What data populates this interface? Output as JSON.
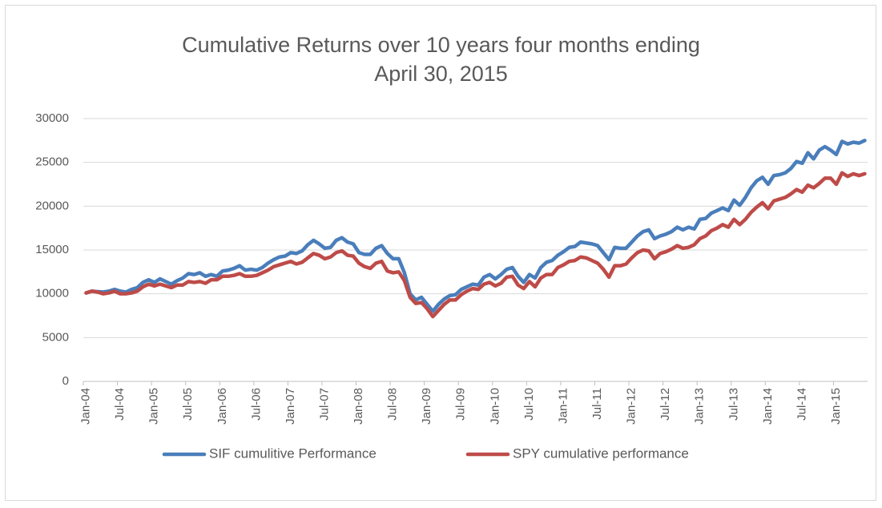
{
  "chart_data": {
    "type": "line",
    "title": "Cumulative Returns over 10 years four months ending April 30, 2015",
    "categories": [
      "Jan-04",
      null,
      null,
      null,
      null,
      null,
      "Jul-04",
      null,
      null,
      null,
      null,
      null,
      "Jan-05",
      null,
      null,
      null,
      null,
      null,
      "Jul-05",
      null,
      null,
      null,
      null,
      null,
      "Jan-06",
      null,
      null,
      null,
      null,
      null,
      "Jul-06",
      null,
      null,
      null,
      null,
      null,
      "Jan-07",
      null,
      null,
      null,
      null,
      null,
      "Jul-07",
      null,
      null,
      null,
      null,
      null,
      "Jan-08",
      null,
      null,
      null,
      null,
      null,
      "Jul-08",
      null,
      null,
      null,
      null,
      null,
      "Jan-09",
      null,
      null,
      null,
      null,
      null,
      "Jul-09",
      null,
      null,
      null,
      null,
      null,
      "Jan-10",
      null,
      null,
      null,
      null,
      null,
      "Jul-10",
      null,
      null,
      null,
      null,
      null,
      "Jan-11",
      null,
      null,
      null,
      null,
      null,
      "Jul-11",
      null,
      null,
      null,
      null,
      null,
      "Jan-12",
      null,
      null,
      null,
      null,
      null,
      "Jul-12",
      null,
      null,
      null,
      null,
      null,
      "Jan-13",
      null,
      null,
      null,
      null,
      null,
      "Jul-13",
      null,
      null,
      null,
      null,
      null,
      "Jan-14",
      null,
      null,
      null,
      null,
      null,
      "Jul-14",
      null,
      null,
      null,
      null,
      null,
      "Jan-15",
      null,
      null,
      null,
      null,
      null
    ],
    "series": [
      {
        "name": "SIF cumulitive Performance",
        "color": "#4a7ebb",
        "values": [
          10100,
          10300,
          10250,
          10200,
          10300,
          10500,
          10300,
          10200,
          10500,
          10700,
          11300,
          11600,
          11300,
          11700,
          11400,
          11100,
          11500,
          11800,
          12300,
          12200,
          12400,
          12000,
          12200,
          12000,
          12600,
          12700,
          12900,
          13200,
          12700,
          12800,
          12700,
          13000,
          13500,
          13900,
          14200,
          14300,
          14700,
          14600,
          14900,
          15600,
          16100,
          15700,
          15200,
          15300,
          16100,
          16400,
          15900,
          15700,
          14700,
          14500,
          14500,
          15200,
          15500,
          14600,
          14000,
          14000,
          12400,
          10000,
          9300,
          9600,
          8800,
          8000,
          8800,
          9400,
          9800,
          9900,
          10500,
          10800,
          11100,
          11000,
          11900,
          12200,
          11700,
          12200,
          12800,
          13000,
          12000,
          11300,
          12200,
          11800,
          13000,
          13600,
          13800,
          14400,
          14800,
          15300,
          15400,
          15900,
          15800,
          15700,
          15500,
          14700,
          13900,
          15300,
          15200,
          15200,
          15900,
          16600,
          17100,
          17300,
          16300,
          16600,
          16800,
          17100,
          17600,
          17300,
          17600,
          17400,
          18500,
          18600,
          19200,
          19500,
          19800,
          19500,
          20700,
          20100,
          21000,
          22100,
          22900,
          23300,
          22500,
          23500,
          23600,
          23800,
          24300,
          25100,
          24900,
          26100,
          25400,
          26400,
          26800,
          26400,
          25900,
          27400,
          27100,
          27300,
          27200,
          27500
        ]
      },
      {
        "name": "SPY cumulative performance",
        "color": "#be4b48",
        "values": [
          10100,
          10300,
          10200,
          10000,
          10100,
          10300,
          10000,
          10000,
          10100,
          10300,
          10800,
          11100,
          10900,
          11100,
          10900,
          10700,
          11000,
          11000,
          11400,
          11300,
          11400,
          11200,
          11600,
          11600,
          12000,
          12000,
          12100,
          12300,
          12000,
          12000,
          12100,
          12400,
          12700,
          13100,
          13300,
          13500,
          13700,
          13400,
          13600,
          14100,
          14600,
          14400,
          14000,
          14200,
          14700,
          14900,
          14400,
          14300,
          13500,
          13100,
          12900,
          13500,
          13700,
          12600,
          12400,
          12500,
          11500,
          9600,
          8900,
          9000,
          8300,
          7400,
          8100,
          8800,
          9300,
          9300,
          9900,
          10300,
          10600,
          10500,
          11100,
          11300,
          10900,
          11200,
          11900,
          12000,
          11000,
          10600,
          11400,
          10800,
          11800,
          12200,
          12200,
          13000,
          13300,
          13700,
          13800,
          14200,
          14100,
          13800,
          13500,
          12800,
          11900,
          13200,
          13200,
          13400,
          14100,
          14700,
          15000,
          14900,
          14000,
          14600,
          14800,
          15100,
          15500,
          15200,
          15300,
          15600,
          16300,
          16600,
          17200,
          17500,
          17900,
          17600,
          18500,
          17900,
          18500,
          19300,
          19900,
          20400,
          19700,
          20600,
          20800,
          21000,
          21400,
          21900,
          21600,
          22400,
          22100,
          22600,
          23200,
          23200,
          22500,
          23800,
          23400,
          23700,
          23500,
          23700
        ]
      }
    ],
    "ylim": [
      0,
      30000
    ],
    "yticks": [
      0,
      5000,
      10000,
      15000,
      20000,
      25000,
      30000
    ],
    "grid": true,
    "legend": "bottom"
  }
}
